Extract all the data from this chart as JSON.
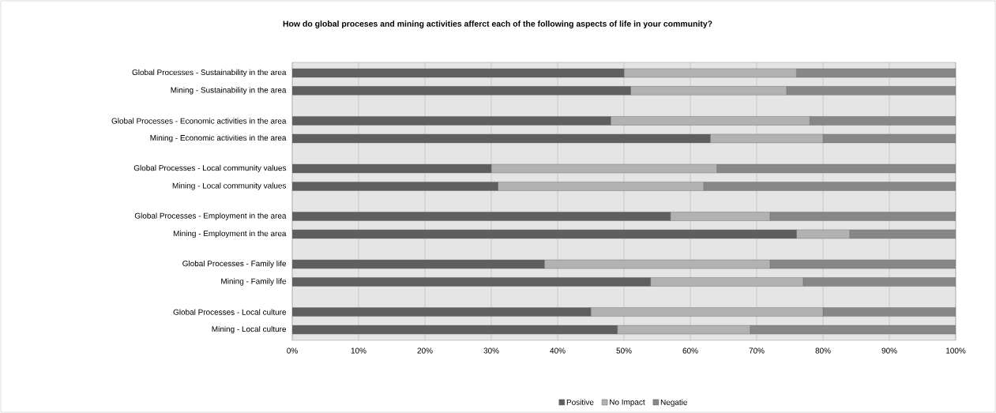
{
  "chart_data": {
    "type": "bar",
    "orientation": "horizontal",
    "stacked": true,
    "title": "How do global proceses and mining activities afferct each of the following aspects of life in your community?",
    "categories": [
      "Global Processes - Sustainability in the area",
      "Mining - Sustainability in the area",
      "Global Processes - Economic activities in the area",
      "Mining - Economic activities in the area",
      "Global Processes - Local community values",
      "Mining - Local community values",
      "Global Processes - Employment in the area",
      "Mining - Employment in the area",
      "Global Processes - Family life",
      "Mining - Family life",
      "Global Processes - Local culture",
      "Mining - Local culture"
    ],
    "series": [
      {
        "name": "Positive",
        "color": "#5f5f5f",
        "values": [
          50,
          51,
          48,
          63,
          30,
          31,
          57,
          76,
          38,
          54,
          45,
          49
        ]
      },
      {
        "name": "No Impact",
        "color": "#b2b2b2",
        "values": [
          26,
          23.5,
          30,
          17,
          34,
          31,
          15,
          8,
          34,
          23,
          35,
          20
        ]
      },
      {
        "name": "Negatie",
        "color": "#878787",
        "values": [
          24,
          25.5,
          22,
          20,
          36,
          38,
          28,
          16,
          28,
          23,
          20,
          31
        ]
      }
    ],
    "xlim": [
      0,
      100
    ],
    "xticks": [
      {
        "value": 0,
        "label": "0%"
      },
      {
        "value": 10,
        "label": "10%"
      },
      {
        "value": 20,
        "label": "20%"
      },
      {
        "value": 30,
        "label": "30%"
      },
      {
        "value": 40,
        "label": "40%"
      },
      {
        "value": 50,
        "label": "50%"
      },
      {
        "value": 60,
        "label": "60%"
      },
      {
        "value": 70,
        "label": "70%"
      },
      {
        "value": 80,
        "label": "80%"
      },
      {
        "value": 90,
        "label": "90%"
      },
      {
        "value": 100,
        "label": "100%"
      }
    ],
    "grid": "x",
    "legend": "bottom"
  }
}
